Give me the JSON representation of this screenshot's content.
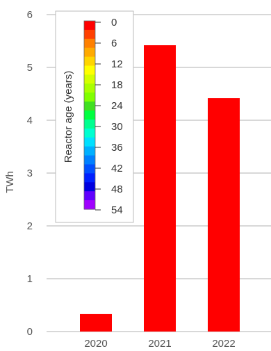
{
  "chart_data": {
    "type": "bar",
    "categories": [
      "2020",
      "2021",
      "2022"
    ],
    "series": [
      {
        "values": [
          0.33,
          5.42,
          4.42
        ],
        "color": "#ff0000"
      }
    ],
    "xlabel": "",
    "ylabel": "TWh",
    "ylim": [
      0,
      6
    ],
    "yticks": [
      "0",
      "1",
      "2",
      "3",
      "4",
      "5",
      "6"
    ],
    "grid": true,
    "legend": {
      "placement": "top-left",
      "title": "Reactor age (years)",
      "tick_labels": [
        "0",
        "6",
        "12",
        "18",
        "24",
        "30",
        "36",
        "42",
        "48",
        "54"
      ],
      "colors": [
        "#ff0000",
        "#ff4000",
        "#ff8000",
        "#ffaa00",
        "#ffd500",
        "#ffff00",
        "#d4ff00",
        "#aaff00",
        "#80ff00",
        "#40e020",
        "#00ff40",
        "#00ff90",
        "#00ffd0",
        "#00e0ff",
        "#00b0ff",
        "#0080ff",
        "#0050ff",
        "#0020ff",
        "#0000e0",
        "#6000ff",
        "#a000ff"
      ]
    }
  }
}
